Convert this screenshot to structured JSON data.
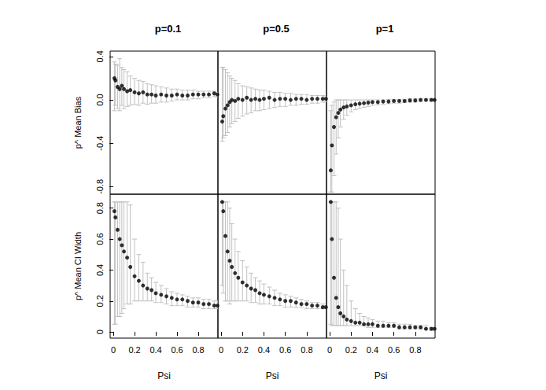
{
  "chart_data": [
    {
      "type": "scatter",
      "title": "p=0.1",
      "y_label": "p^ Mean Bias",
      "xlim": [
        -0.03,
        0.985
      ],
      "ylim": [
        -0.87,
        0.45
      ],
      "yticks": [
        -0.8,
        -0.4,
        {
          "value": 0,
          "label": "0.0"
        },
        0.4
      ],
      "tick_labels": "y",
      "color": "#000000",
      "marker": "circle",
      "x": [
        0.01,
        0.02,
        0.04,
        0.06,
        0.08,
        0.1,
        0.13,
        0.16,
        0.2,
        0.24,
        0.28,
        0.32,
        0.36,
        0.4,
        0.45,
        0.5,
        0.55,
        0.6,
        0.65,
        0.7,
        0.75,
        0.8,
        0.85,
        0.9,
        0.95,
        0.98
      ],
      "values": [
        0.2,
        0.18,
        0.12,
        0.1,
        0.13,
        0.1,
        0.08,
        0.09,
        0.07,
        0.06,
        0.07,
        0.05,
        0.05,
        0.04,
        0.05,
        0.04,
        0.04,
        0.05,
        0.04,
        0.04,
        0.05,
        0.05,
        0.05,
        0.05,
        0.06,
        0.05
      ],
      "lower": [
        -0.1,
        -0.05,
        -0.08,
        -0.1,
        -0.05,
        -0.08,
        -0.06,
        -0.05,
        -0.04,
        -0.05,
        -0.03,
        -0.04,
        -0.03,
        -0.03,
        -0.02,
        -0.02,
        -0.01,
        0,
        0,
        0,
        0.01,
        0.01,
        0.02,
        0.02,
        0.03,
        0.03
      ],
      "upper": [
        0.35,
        0.33,
        0.32,
        0.38,
        0.3,
        0.28,
        0.26,
        0.22,
        0.2,
        0.18,
        0.17,
        0.15,
        0.14,
        0.13,
        0.12,
        0.11,
        0.1,
        0.1,
        0.09,
        0.09,
        0.09,
        0.08,
        0.08,
        0.08,
        0.08,
        0.07
      ]
    },
    {
      "type": "scatter",
      "title": "p=0.5",
      "xlim": [
        -0.03,
        0.985
      ],
      "ylim": [
        -0.87,
        0.45
      ],
      "tick_labels": false,
      "color": "#000000",
      "marker": "circle",
      "x": [
        0.01,
        0.02,
        0.04,
        0.06,
        0.08,
        0.1,
        0.13,
        0.16,
        0.2,
        0.24,
        0.28,
        0.32,
        0.36,
        0.4,
        0.45,
        0.5,
        0.55,
        0.6,
        0.65,
        0.7,
        0.75,
        0.8,
        0.85,
        0.9,
        0.95,
        0.98
      ],
      "values": [
        -0.2,
        -0.15,
        -0.08,
        -0.05,
        -0.02,
        0,
        -0.01,
        0.01,
        0,
        0.02,
        0,
        0.01,
        0,
        0.01,
        0.02,
        0,
        0.01,
        0.01,
        0,
        0.01,
        0.01,
        0,
        0.01,
        0.01,
        0.01,
        0.01
      ],
      "lower": [
        -0.38,
        -0.35,
        -0.33,
        -0.3,
        -0.25,
        -0.22,
        -0.2,
        -0.17,
        -0.15,
        -0.13,
        -0.12,
        -0.1,
        -0.1,
        -0.09,
        -0.08,
        -0.07,
        -0.06,
        -0.06,
        -0.05,
        -0.05,
        -0.04,
        -0.04,
        -0.03,
        -0.03,
        -0.02,
        -0.02
      ],
      "upper": [
        0.3,
        0.3,
        0.28,
        0.25,
        0.22,
        0.2,
        0.18,
        0.15,
        0.13,
        0.12,
        0.11,
        0.1,
        0.09,
        0.09,
        0.08,
        0.07,
        0.07,
        0.06,
        0.06,
        0.05,
        0.05,
        0.05,
        0.04,
        0.04,
        0.04,
        0.03
      ]
    },
    {
      "type": "scatter",
      "title": "p=1",
      "xlim": [
        -0.03,
        0.985
      ],
      "ylim": [
        -0.87,
        0.45
      ],
      "tick_labels": false,
      "color": "#000000",
      "marker": "circle",
      "x": [
        0.01,
        0.02,
        0.04,
        0.06,
        0.08,
        0.1,
        0.13,
        0.16,
        0.2,
        0.24,
        0.28,
        0.32,
        0.36,
        0.4,
        0.45,
        0.5,
        0.55,
        0.6,
        0.65,
        0.7,
        0.75,
        0.8,
        0.85,
        0.9,
        0.95,
        0.98
      ],
      "values": [
        -0.65,
        -0.42,
        -0.25,
        -0.16,
        -0.12,
        -0.09,
        -0.07,
        -0.06,
        -0.05,
        -0.04,
        -0.035,
        -0.03,
        -0.025,
        -0.02,
        -0.02,
        -0.015,
        -0.015,
        -0.01,
        -0.01,
        -0.01,
        -0.005,
        -0.005,
        0,
        0,
        0,
        0
      ],
      "lower": [
        -0.85,
        -0.85,
        -0.7,
        -0.5,
        -0.35,
        -0.25,
        -0.18,
        -0.14,
        -0.11,
        -0.09,
        -0.08,
        -0.07,
        -0.06,
        -0.05,
        -0.045,
        -0.04,
        -0.035,
        -0.03,
        -0.03,
        -0.025,
        -0.02,
        -0.02,
        -0.015,
        -0.01,
        -0.01,
        -0.01
      ],
      "upper": [
        -0.1,
        -0.05,
        -0.02,
        0,
        0,
        0,
        0,
        0,
        0,
        0,
        0,
        0,
        0,
        0,
        0,
        0,
        0.005,
        0.005,
        0.005,
        0.005,
        0.01,
        0.01,
        0.01,
        0.01,
        0.01,
        0.01
      ]
    },
    {
      "type": "scatter",
      "x_label": "Psi",
      "y_label": "p^ Mean CI Width",
      "xlim": [
        -0.03,
        0.985
      ],
      "ylim": [
        -0.04,
        0.89
      ],
      "xticks": [
        0,
        0.2,
        0.4,
        0.6,
        0.8
      ],
      "yticks": [
        0,
        0.2,
        0.4,
        0.6,
        0.8
      ],
      "tick_labels": true,
      "color": "#000000",
      "marker": "circle",
      "x": [
        0.01,
        0.02,
        0.04,
        0.06,
        0.08,
        0.1,
        0.13,
        0.16,
        0.2,
        0.24,
        0.28,
        0.32,
        0.36,
        0.4,
        0.45,
        0.5,
        0.55,
        0.6,
        0.65,
        0.7,
        0.75,
        0.8,
        0.85,
        0.9,
        0.95,
        0.98
      ],
      "values": [
        0.78,
        0.74,
        0.66,
        0.6,
        0.56,
        0.52,
        0.48,
        0.42,
        0.36,
        0.33,
        0.3,
        0.28,
        0.27,
        0.25,
        0.24,
        0.23,
        0.22,
        0.21,
        0.21,
        0.2,
        0.19,
        0.19,
        0.18,
        0.18,
        0.17,
        0.17
      ],
      "lower": [
        0.05,
        0.05,
        0.1,
        0.1,
        0.12,
        0.15,
        0.18,
        0.18,
        0.2,
        0.2,
        0.2,
        0.2,
        0.2,
        0.19,
        0.19,
        0.18,
        0.17,
        0.17,
        0.17,
        0.16,
        0.16,
        0.16,
        0.15,
        0.15,
        0.15,
        0.15
      ],
      "upper": [
        0.84,
        0.84,
        0.84,
        0.84,
        0.84,
        0.84,
        0.84,
        0.82,
        0.6,
        0.5,
        0.45,
        0.38,
        0.35,
        0.32,
        0.3,
        0.28,
        0.26,
        0.25,
        0.24,
        0.23,
        0.22,
        0.22,
        0.21,
        0.21,
        0.2,
        0.2
      ]
    },
    {
      "type": "scatter",
      "x_label": "Psi",
      "xlim": [
        -0.03,
        0.985
      ],
      "ylim": [
        -0.04,
        0.89
      ],
      "xticks": [
        0,
        0.2,
        0.4,
        0.6,
        0.8
      ],
      "tick_labels": "x",
      "color": "#000000",
      "marker": "circle",
      "x": [
        0.01,
        0.02,
        0.04,
        0.06,
        0.08,
        0.1,
        0.13,
        0.16,
        0.2,
        0.24,
        0.28,
        0.32,
        0.36,
        0.4,
        0.45,
        0.5,
        0.55,
        0.6,
        0.65,
        0.7,
        0.75,
        0.8,
        0.85,
        0.9,
        0.95,
        0.98
      ],
      "values": [
        0.84,
        0.78,
        0.62,
        0.52,
        0.46,
        0.42,
        0.38,
        0.35,
        0.32,
        0.3,
        0.28,
        0.27,
        0.25,
        0.24,
        0.23,
        0.22,
        0.21,
        0.2,
        0.2,
        0.19,
        0.18,
        0.18,
        0.17,
        0.17,
        0.16,
        0.16
      ],
      "lower": [
        0.3,
        0.25,
        0.2,
        0.2,
        0.18,
        0.2,
        0.2,
        0.2,
        0.2,
        0.2,
        0.19,
        0.19,
        0.18,
        0.18,
        0.18,
        0.17,
        0.17,
        0.16,
        0.16,
        0.16,
        0.16,
        0.15,
        0.15,
        0.15,
        0.15,
        0.15
      ],
      "upper": [
        0.84,
        0.84,
        0.84,
        0.84,
        0.8,
        0.7,
        0.6,
        0.52,
        0.46,
        0.42,
        0.38,
        0.35,
        0.33,
        0.31,
        0.29,
        0.27,
        0.25,
        0.24,
        0.23,
        0.22,
        0.21,
        0.2,
        0.19,
        0.19,
        0.18,
        0.17
      ]
    },
    {
      "type": "scatter",
      "x_label": "Psi",
      "xlim": [
        -0.03,
        0.985
      ],
      "ylim": [
        -0.04,
        0.89
      ],
      "xticks": [
        0,
        0.2,
        0.4,
        0.6,
        0.8
      ],
      "tick_labels": "x",
      "color": "#000000",
      "marker": "circle",
      "x": [
        0.01,
        0.02,
        0.04,
        0.06,
        0.08,
        0.1,
        0.13,
        0.16,
        0.2,
        0.24,
        0.28,
        0.32,
        0.36,
        0.4,
        0.45,
        0.5,
        0.55,
        0.6,
        0.65,
        0.7,
        0.75,
        0.8,
        0.85,
        0.9,
        0.95,
        0.98
      ],
      "values": [
        0.84,
        0.6,
        0.35,
        0.22,
        0.16,
        0.12,
        0.1,
        0.08,
        0.07,
        0.06,
        0.06,
        0.05,
        0.05,
        0.05,
        0.04,
        0.04,
        0.04,
        0.04,
        0.03,
        0.03,
        0.03,
        0.03,
        0.03,
        0.02,
        0.02,
        0.02
      ],
      "lower": [
        0.05,
        0.04,
        0.04,
        0.04,
        0.04,
        0.04,
        0.04,
        0.04,
        0.04,
        0.04,
        0.04,
        0.04,
        0.03,
        0.03,
        0.03,
        0.03,
        0.03,
        0.03,
        0.02,
        0.02,
        0.02,
        0.02,
        0.02,
        0.02,
        0.01,
        0.01
      ],
      "upper": [
        0.84,
        0.84,
        0.84,
        0.84,
        0.8,
        0.6,
        0.4,
        0.3,
        0.2,
        0.15,
        0.12,
        0.1,
        0.09,
        0.08,
        0.07,
        0.07,
        0.06,
        0.06,
        0.05,
        0.05,
        0.05,
        0.04,
        0.04,
        0.04,
        0.03,
        0.03
      ]
    }
  ]
}
